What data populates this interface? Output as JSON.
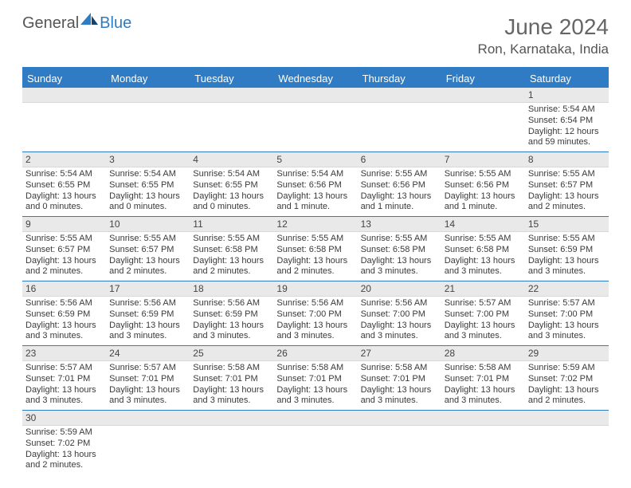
{
  "logo": {
    "text1": "General",
    "text2": "Blue"
  },
  "title": "June 2024",
  "location": "Ron, Karnataka, India",
  "colors": {
    "accent": "#2f7cc4",
    "daynum_bg": "#e9e9e9",
    "text": "#3a3a3a",
    "header_text": "#666"
  },
  "day_headers": [
    "Sunday",
    "Monday",
    "Tuesday",
    "Wednesday",
    "Thursday",
    "Friday",
    "Saturday"
  ],
  "weeks": [
    [
      null,
      null,
      null,
      null,
      null,
      null,
      {
        "n": "1",
        "sr": "5:54 AM",
        "ss": "6:54 PM",
        "dl": "12 hours and 59 minutes."
      }
    ],
    [
      {
        "n": "2",
        "sr": "5:54 AM",
        "ss": "6:55 PM",
        "dl": "13 hours and 0 minutes."
      },
      {
        "n": "3",
        "sr": "5:54 AM",
        "ss": "6:55 PM",
        "dl": "13 hours and 0 minutes."
      },
      {
        "n": "4",
        "sr": "5:54 AM",
        "ss": "6:55 PM",
        "dl": "13 hours and 0 minutes."
      },
      {
        "n": "5",
        "sr": "5:54 AM",
        "ss": "6:56 PM",
        "dl": "13 hours and 1 minute."
      },
      {
        "n": "6",
        "sr": "5:55 AM",
        "ss": "6:56 PM",
        "dl": "13 hours and 1 minute."
      },
      {
        "n": "7",
        "sr": "5:55 AM",
        "ss": "6:56 PM",
        "dl": "13 hours and 1 minute."
      },
      {
        "n": "8",
        "sr": "5:55 AM",
        "ss": "6:57 PM",
        "dl": "13 hours and 2 minutes."
      }
    ],
    [
      {
        "n": "9",
        "sr": "5:55 AM",
        "ss": "6:57 PM",
        "dl": "13 hours and 2 minutes."
      },
      {
        "n": "10",
        "sr": "5:55 AM",
        "ss": "6:57 PM",
        "dl": "13 hours and 2 minutes."
      },
      {
        "n": "11",
        "sr": "5:55 AM",
        "ss": "6:58 PM",
        "dl": "13 hours and 2 minutes."
      },
      {
        "n": "12",
        "sr": "5:55 AM",
        "ss": "6:58 PM",
        "dl": "13 hours and 2 minutes."
      },
      {
        "n": "13",
        "sr": "5:55 AM",
        "ss": "6:58 PM",
        "dl": "13 hours and 3 minutes."
      },
      {
        "n": "14",
        "sr": "5:55 AM",
        "ss": "6:58 PM",
        "dl": "13 hours and 3 minutes."
      },
      {
        "n": "15",
        "sr": "5:55 AM",
        "ss": "6:59 PM",
        "dl": "13 hours and 3 minutes."
      }
    ],
    [
      {
        "n": "16",
        "sr": "5:56 AM",
        "ss": "6:59 PM",
        "dl": "13 hours and 3 minutes."
      },
      {
        "n": "17",
        "sr": "5:56 AM",
        "ss": "6:59 PM",
        "dl": "13 hours and 3 minutes."
      },
      {
        "n": "18",
        "sr": "5:56 AM",
        "ss": "6:59 PM",
        "dl": "13 hours and 3 minutes."
      },
      {
        "n": "19",
        "sr": "5:56 AM",
        "ss": "7:00 PM",
        "dl": "13 hours and 3 minutes."
      },
      {
        "n": "20",
        "sr": "5:56 AM",
        "ss": "7:00 PM",
        "dl": "13 hours and 3 minutes."
      },
      {
        "n": "21",
        "sr": "5:57 AM",
        "ss": "7:00 PM",
        "dl": "13 hours and 3 minutes."
      },
      {
        "n": "22",
        "sr": "5:57 AM",
        "ss": "7:00 PM",
        "dl": "13 hours and 3 minutes."
      }
    ],
    [
      {
        "n": "23",
        "sr": "5:57 AM",
        "ss": "7:01 PM",
        "dl": "13 hours and 3 minutes."
      },
      {
        "n": "24",
        "sr": "5:57 AM",
        "ss": "7:01 PM",
        "dl": "13 hours and 3 minutes."
      },
      {
        "n": "25",
        "sr": "5:58 AM",
        "ss": "7:01 PM",
        "dl": "13 hours and 3 minutes."
      },
      {
        "n": "26",
        "sr": "5:58 AM",
        "ss": "7:01 PM",
        "dl": "13 hours and 3 minutes."
      },
      {
        "n": "27",
        "sr": "5:58 AM",
        "ss": "7:01 PM",
        "dl": "13 hours and 3 minutes."
      },
      {
        "n": "28",
        "sr": "5:58 AM",
        "ss": "7:01 PM",
        "dl": "13 hours and 3 minutes."
      },
      {
        "n": "29",
        "sr": "5:59 AM",
        "ss": "7:02 PM",
        "dl": "13 hours and 2 minutes."
      }
    ],
    [
      {
        "n": "30",
        "sr": "5:59 AM",
        "ss": "7:02 PM",
        "dl": "13 hours and 2 minutes."
      },
      null,
      null,
      null,
      null,
      null,
      null
    ]
  ],
  "labels": {
    "sunrise": "Sunrise: ",
    "sunset": "Sunset: ",
    "daylight": "Daylight: "
  }
}
